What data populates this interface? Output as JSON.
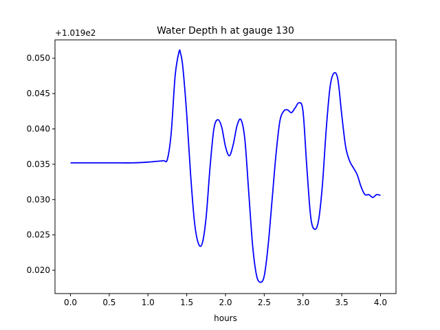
{
  "chart_data": {
    "type": "line",
    "title": "Water Depth h at gauge 130",
    "xlabel": "hours",
    "ylabel": "",
    "offset_label": "+1.019e2",
    "xlim": [
      -0.2,
      4.2
    ],
    "ylim": [
      0.0167,
      0.0526
    ],
    "x_ticks": [
      0.0,
      0.5,
      1.0,
      1.5,
      2.0,
      2.5,
      3.0,
      3.5,
      4.0
    ],
    "x_tick_labels": [
      "0.0",
      "0.5",
      "1.0",
      "1.5",
      "2.0",
      "2.5",
      "3.0",
      "3.5",
      "4.0"
    ],
    "y_ticks": [
      0.02,
      0.025,
      0.03,
      0.035,
      0.04,
      0.045,
      0.05
    ],
    "y_tick_labels": [
      "0.020",
      "0.025",
      "0.030",
      "0.035",
      "0.040",
      "0.045",
      "0.050"
    ],
    "grid": false,
    "series": [
      {
        "color": "#0000ff",
        "x": [
          0.0,
          0.5,
          0.8,
          1.0,
          1.1,
          1.2,
          1.25,
          1.3,
          1.35,
          1.4,
          1.42,
          1.45,
          1.5,
          1.55,
          1.6,
          1.65,
          1.7,
          1.75,
          1.8,
          1.85,
          1.9,
          1.95,
          2.0,
          2.05,
          2.1,
          2.15,
          2.2,
          2.25,
          2.3,
          2.35,
          2.4,
          2.45,
          2.5,
          2.55,
          2.6,
          2.65,
          2.7,
          2.75,
          2.8,
          2.85,
          2.9,
          2.95,
          3.0,
          3.05,
          3.1,
          3.15,
          3.2,
          3.25,
          3.3,
          3.35,
          3.4,
          3.45,
          3.5,
          3.55,
          3.6,
          3.65,
          3.7,
          3.75,
          3.8,
          3.85,
          3.9,
          3.95,
          4.0
        ],
        "y": [
          0.0352,
          0.0352,
          0.0352,
          0.0353,
          0.0354,
          0.0355,
          0.0357,
          0.0395,
          0.0475,
          0.0509,
          0.0507,
          0.0487,
          0.042,
          0.0335,
          0.0268,
          0.0238,
          0.0238,
          0.0275,
          0.0345,
          0.04,
          0.0413,
          0.0403,
          0.0375,
          0.0362,
          0.0378,
          0.0405,
          0.0413,
          0.0385,
          0.031,
          0.0235,
          0.0193,
          0.0183,
          0.0192,
          0.0235,
          0.0298,
          0.0362,
          0.041,
          0.0425,
          0.0427,
          0.0423,
          0.043,
          0.0437,
          0.0425,
          0.0345,
          0.0275,
          0.0258,
          0.027,
          0.032,
          0.04,
          0.046,
          0.0479,
          0.047,
          0.042,
          0.0375,
          0.0355,
          0.0345,
          0.0335,
          0.0318,
          0.0307,
          0.0307,
          0.0303,
          0.0307,
          0.0306
        ]
      }
    ]
  }
}
